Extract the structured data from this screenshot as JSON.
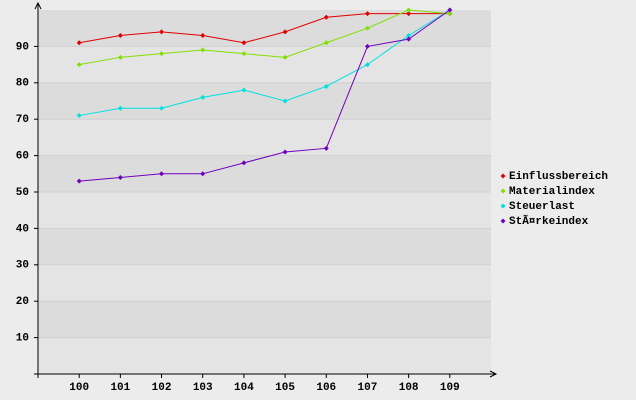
{
  "chart_data": {
    "type": "line",
    "categories": [
      "100",
      "101",
      "102",
      "103",
      "104",
      "105",
      "106",
      "107",
      "108",
      "109"
    ],
    "series": [
      {
        "name": "Einflussbereich",
        "color": "#e00000",
        "values": [
          91,
          93,
          94,
          93,
          91,
          94,
          98,
          99,
          99,
          99
        ]
      },
      {
        "name": "Materialindex",
        "color": "#80e000",
        "values": [
          85,
          87,
          88,
          89,
          88,
          87,
          91,
          95,
          100,
          99
        ]
      },
      {
        "name": "Steuerlast",
        "color": "#00e0e0",
        "values": [
          71,
          73,
          73,
          76,
          78,
          75,
          79,
          85,
          93,
          100
        ]
      },
      {
        "name": "StÃ¤rkeindex",
        "color": "#7000c0",
        "values": [
          53,
          54,
          55,
          55,
          58,
          61,
          62,
          90,
          92,
          100
        ]
      }
    ],
    "ylim": [
      0,
      100
    ],
    "yticks": [
      10,
      20,
      30,
      40,
      50,
      60,
      70,
      80,
      90
    ],
    "grid": true,
    "legend": "right"
  }
}
